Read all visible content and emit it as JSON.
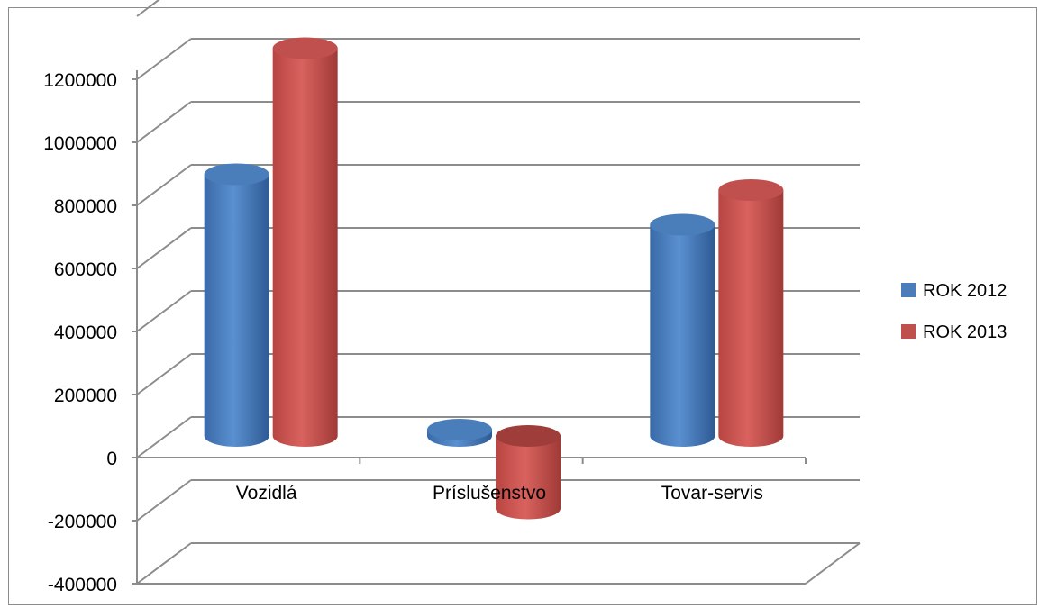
{
  "chart_data": {
    "type": "bar",
    "style": "3d-cylinder",
    "categories": [
      "Vozidlá",
      "Príslušenstvo",
      "Tovar-servis"
    ],
    "series": [
      {
        "name": "ROK 2012",
        "color": "#4a7ebb",
        "values": [
          830000,
          20000,
          670000
        ]
      },
      {
        "name": "ROK 2013",
        "color": "#c0504d",
        "values": [
          1230000,
          -230000,
          780000
        ]
      }
    ],
    "yticks": [
      "1200000",
      "1000000",
      "800000",
      "600000",
      "400000",
      "200000",
      "0",
      "-200000",
      "-400000"
    ],
    "ylim": [
      -400000,
      1200000
    ],
    "grid": true,
    "legend_position": "right"
  }
}
